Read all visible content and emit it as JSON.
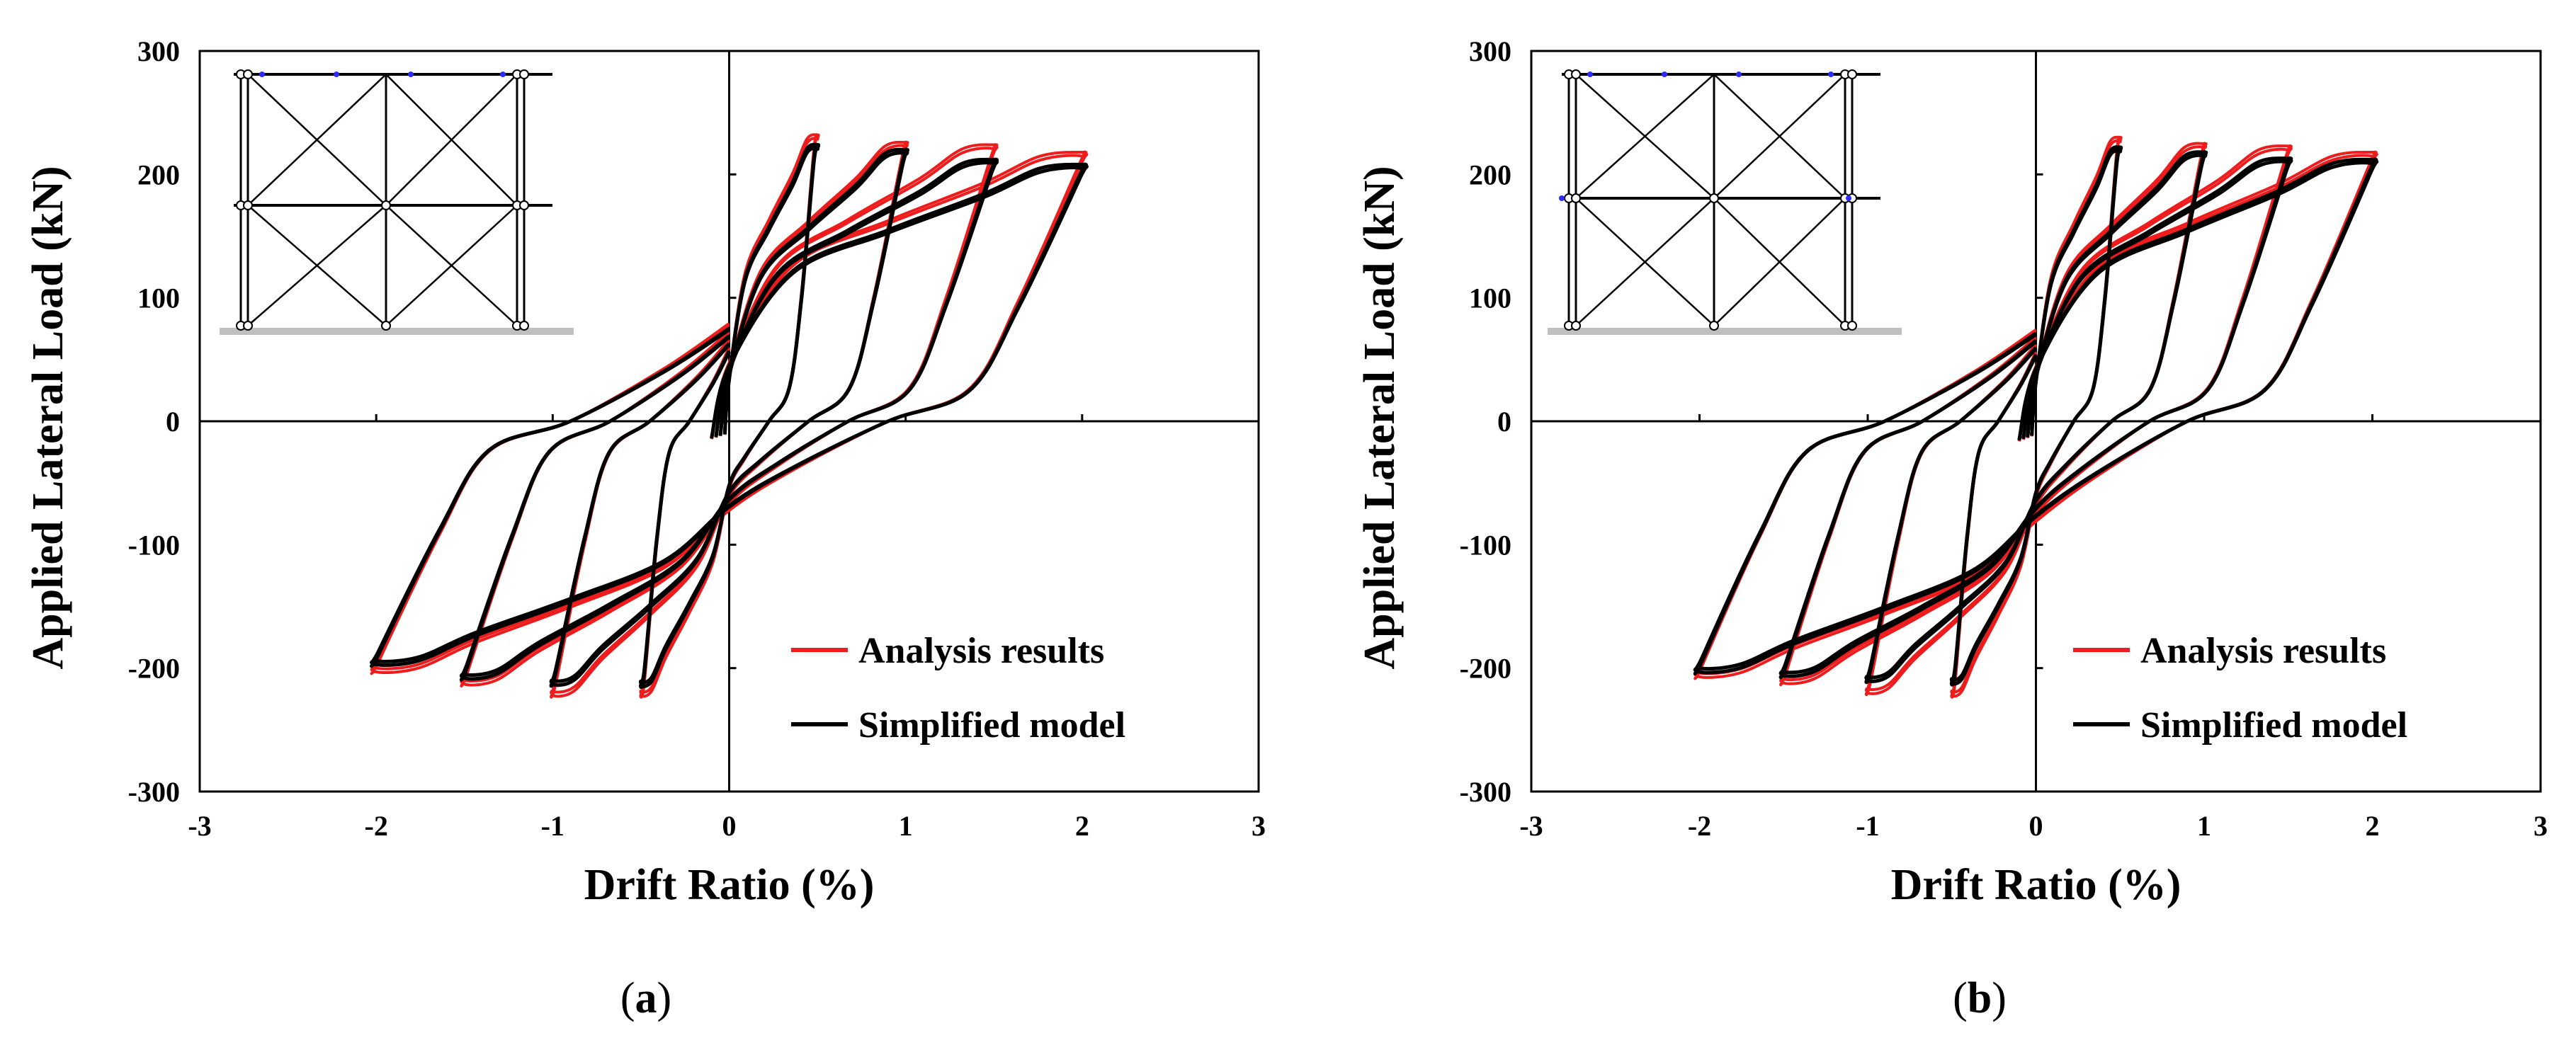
{
  "colors": {
    "analysis": "#ee1c1c",
    "simplified": "#000000",
    "ground": "#bfbfbf",
    "support": "#2b2bff"
  },
  "panels": [
    {
      "id": "a",
      "label_letter": "a",
      "legend": [
        "Analysis results",
        "Simplified model"
      ],
      "inset": "frame-a-icon"
    },
    {
      "id": "b",
      "label_letter": "b",
      "legend": [
        "Analysis results",
        "Simplified model"
      ],
      "inset": "frame-b-icon"
    }
  ],
  "chart_data": [
    {
      "type": "line",
      "panel": "a",
      "xlabel": "Drift Ratio (%)",
      "ylabel": "Applied Lateral Load (kN)",
      "xlim": [
        -3,
        3
      ],
      "ylim": [
        -300,
        300
      ],
      "xticks": [
        -3,
        -2,
        -1,
        0,
        1,
        2,
        3
      ],
      "yticks": [
        -300,
        -200,
        -100,
        0,
        100,
        200,
        300
      ],
      "grid": false,
      "legend_position": "bottom-right",
      "series": [
        {
          "name": "Analysis results",
          "color": "#ee1c1c",
          "cycles": [
            {
              "d": 0.5,
              "peak_pos": 232,
              "peak_neg": -222
            },
            {
              "d": 1.0,
              "peak_pos": 226,
              "peak_neg": -222
            },
            {
              "d": 1.5,
              "peak_pos": 224,
              "peak_neg": -213
            },
            {
              "d": 2.0,
              "peak_pos": 218,
              "peak_neg": -203
            }
          ],
          "zero_load_intercepts": {
            "pos": 80,
            "neg": -73
          }
        },
        {
          "name": "Simplified model",
          "color": "#000000",
          "cycles": [
            {
              "d": 0.5,
              "peak_pos": 224,
              "peak_neg": -214
            },
            {
              "d": 1.0,
              "peak_pos": 220,
              "peak_neg": -213
            },
            {
              "d": 1.5,
              "peak_pos": 212,
              "peak_neg": -208
            },
            {
              "d": 2.0,
              "peak_pos": 208,
              "peak_neg": -197
            }
          ],
          "zero_load_intercepts": {
            "pos": 76,
            "neg": -70
          }
        }
      ]
    },
    {
      "type": "line",
      "panel": "b",
      "xlabel": "Drift Ratio (%)",
      "ylabel": "Applied Lateral Load (kN)",
      "xlim": [
        -3,
        3
      ],
      "ylim": [
        -300,
        300
      ],
      "xticks": [
        -3,
        -2,
        -1,
        0,
        1,
        2,
        3
      ],
      "yticks": [
        -300,
        -200,
        -100,
        0,
        100,
        200,
        300
      ],
      "grid": false,
      "legend_position": "bottom-right",
      "series": [
        {
          "name": "Analysis results",
          "color": "#ee1c1c",
          "cycles": [
            {
              "d": 0.5,
              "peak_pos": 230,
              "peak_neg": -222
            },
            {
              "d": 1.0,
              "peak_pos": 225,
              "peak_neg": -220
            },
            {
              "d": 1.5,
              "peak_pos": 223,
              "peak_neg": -212
            },
            {
              "d": 2.0,
              "peak_pos": 218,
              "peak_neg": -207
            }
          ],
          "zero_load_intercepts": {
            "pos": 75,
            "neg": -82
          }
        },
        {
          "name": "Simplified model",
          "color": "#000000",
          "cycles": [
            {
              "d": 0.5,
              "peak_pos": 222,
              "peak_neg": -212
            },
            {
              "d": 1.0,
              "peak_pos": 218,
              "peak_neg": -210
            },
            {
              "d": 1.5,
              "peak_pos": 213,
              "peak_neg": -206
            },
            {
              "d": 2.0,
              "peak_pos": 212,
              "peak_neg": -203
            }
          ],
          "zero_load_intercepts": {
            "pos": 72,
            "neg": -78
          }
        }
      ]
    }
  ]
}
